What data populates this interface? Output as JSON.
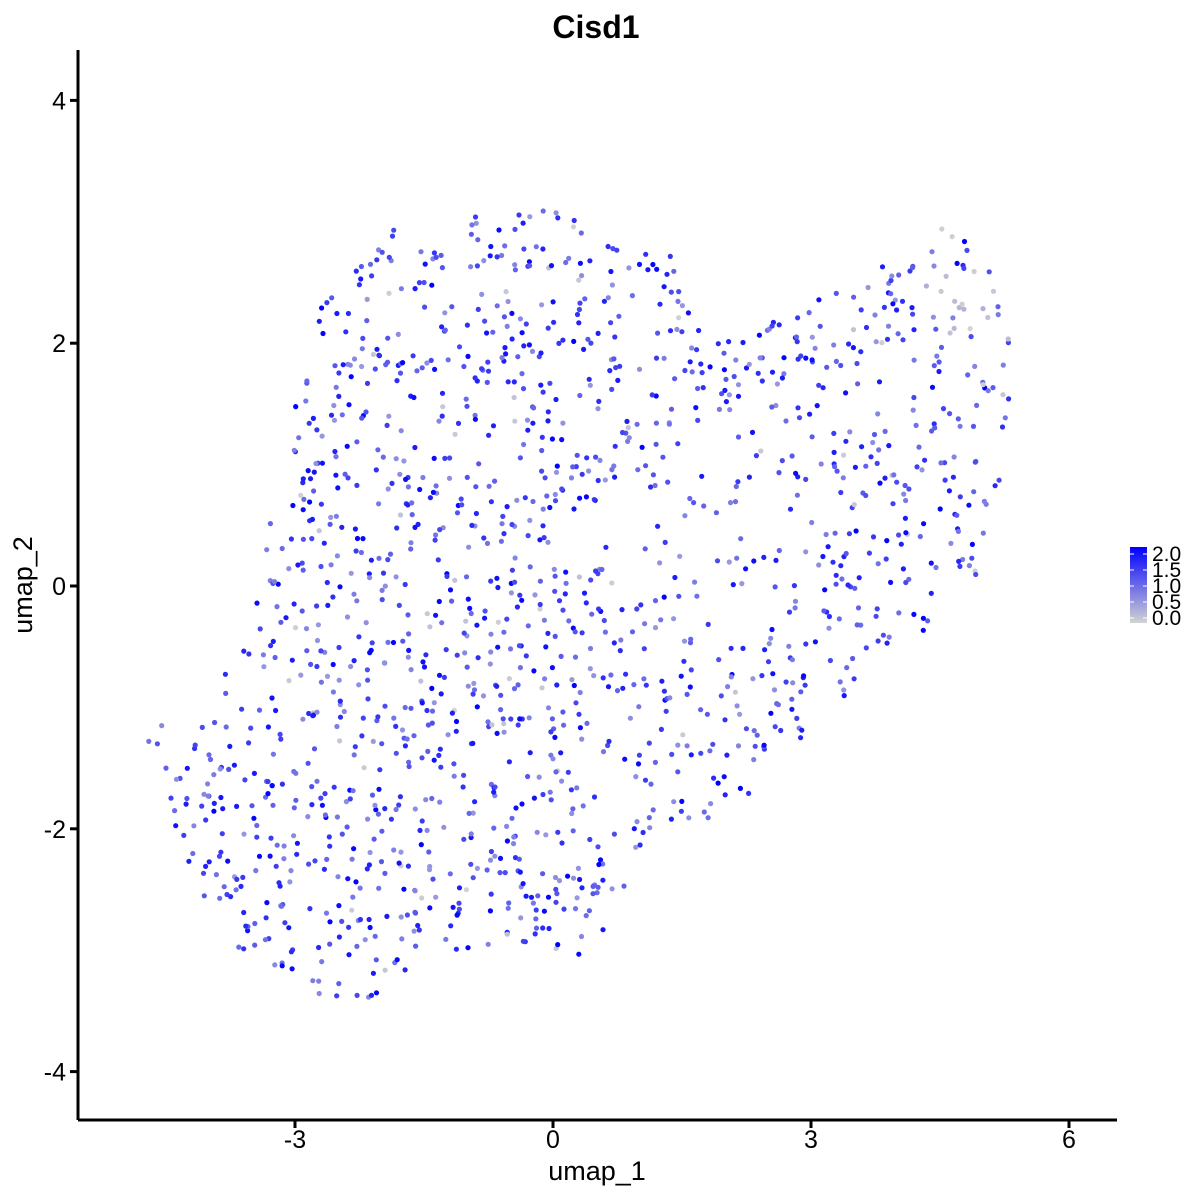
{
  "chart_data": {
    "type": "scatter",
    "title": "Cisd1",
    "xlabel": "umap_1",
    "ylabel": "umap_2",
    "xlim": [
      -5.9,
      6.5
    ],
    "ylim": [
      -4.35,
      4.4
    ],
    "x_ticks": [
      -3,
      0,
      3,
      6
    ],
    "x_tick_labels": [
      "-3",
      "0",
      "3",
      "6"
    ],
    "y_ticks": [
      -4,
      -2,
      0,
      2,
      4
    ],
    "y_tick_labels": [
      "-4",
      "-2",
      "0",
      "2",
      "4"
    ],
    "grid": false,
    "legend": {
      "placement": "right",
      "type": "continuous colorbar",
      "range": [
        0.0,
        2.0
      ],
      "labels": [
        "2.0",
        "1.5",
        "1.0",
        "0.5",
        "0.0"
      ],
      "colors": {
        "low": "#d3d3d3",
        "high": "#0000ff"
      }
    },
    "point_count_estimate": 1600,
    "cluster_outline": [
      [
        -2.2,
        2.9
      ],
      [
        -1.2,
        3.05
      ],
      [
        0.0,
        3.1
      ],
      [
        1.0,
        2.85
      ],
      [
        1.5,
        2.7
      ],
      [
        1.6,
        2.2
      ],
      [
        1.9,
        2.0
      ],
      [
        2.6,
        2.2
      ],
      [
        3.3,
        2.5
      ],
      [
        4.3,
        2.85
      ],
      [
        4.6,
        3.0
      ],
      [
        5.0,
        2.7
      ],
      [
        5.35,
        2.2
      ],
      [
        5.3,
        1.5
      ],
      [
        5.25,
        0.6
      ],
      [
        4.9,
        0.0
      ],
      [
        4.2,
        -0.5
      ],
      [
        3.4,
        -0.9
      ],
      [
        2.9,
        -1.3
      ],
      [
        2.5,
        -1.65
      ],
      [
        1.7,
        -1.95
      ],
      [
        1.0,
        -2.2
      ],
      [
        0.8,
        -2.75
      ],
      [
        0.3,
        -3.1
      ],
      [
        -0.6,
        -3.0
      ],
      [
        -1.4,
        -3.0
      ],
      [
        -2.0,
        -3.35
      ],
      [
        -2.5,
        -3.5
      ],
      [
        -3.1,
        -3.25
      ],
      [
        -3.6,
        -3.05
      ],
      [
        -4.0,
        -2.75
      ],
      [
        -4.3,
        -2.2
      ],
      [
        -4.5,
        -1.7
      ],
      [
        -4.2,
        -1.25
      ],
      [
        -3.6,
        -0.4
      ],
      [
        -3.3,
        0.5
      ],
      [
        -3.05,
        1.3
      ],
      [
        -2.9,
        2.1
      ],
      [
        -2.4,
        2.6
      ]
    ],
    "outlier_points": [
      {
        "x": -4.6,
        "y": -1.3,
        "value": 1.2
      },
      {
        "x": -4.55,
        "y": -1.15,
        "value": 0.7
      },
      {
        "x": -4.7,
        "y": -1.28,
        "value": 0.9
      },
      {
        "x": -4.5,
        "y": -1.5,
        "value": 1.1
      },
      {
        "x": -4.4,
        "y": -1.85,
        "value": 1.0
      }
    ]
  }
}
